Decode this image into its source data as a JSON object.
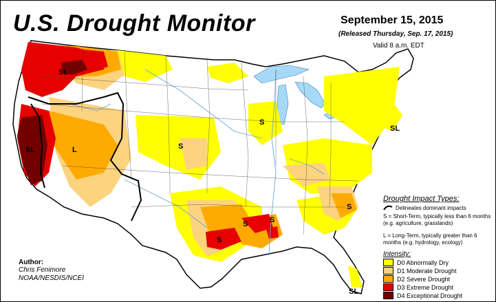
{
  "header": {
    "title": "U.S. Drought Monitor",
    "date": "September 15, 2015",
    "released": "(Released Thursday, Sep. 17, 2015)",
    "valid": "Valid 8 a.m. EDT"
  },
  "map_labels": {
    "sl_northwest": "SL",
    "sl_california": "SL",
    "l_nevada": "L",
    "s_kansas": "S",
    "s_illinois": "S",
    "s_arkansas": "S",
    "s_texas": "S",
    "s_tennessee": "S",
    "s_carolina": "S",
    "sl_northeast": "SL",
    "sl_florida": "SL"
  },
  "legend": {
    "impact_title": "Drought Impact Types:",
    "line_desc": "Delineates dominant impacts",
    "short_term": "S = Short-Term, typically less than 6 months (e.g. agriculture, grasslands)",
    "long_term": "L = Long-Term, typically greater than 6 months (e.g. hydrology, ecology)",
    "intensity_title": "Intensity:",
    "categories": [
      {
        "label": "D0 Abnormally Dry",
        "color": "#ffff00"
      },
      {
        "label": "D1 Moderate Drought",
        "color": "#fcd37f"
      },
      {
        "label": "D2 Severe Drought",
        "color": "#ffaa00"
      },
      {
        "label": "D3 Extreme Drought",
        "color": "#e60000"
      },
      {
        "label": "D4 Exceptional Drought",
        "color": "#730000"
      }
    ]
  },
  "author": {
    "label": "Author:",
    "name": "Chris Fenimore",
    "org": "NOAA/NESDIS/NCEI"
  },
  "colors": {
    "water": "#a6d9f7",
    "land": "#ffffff",
    "rivers": "#6ba6d9"
  }
}
